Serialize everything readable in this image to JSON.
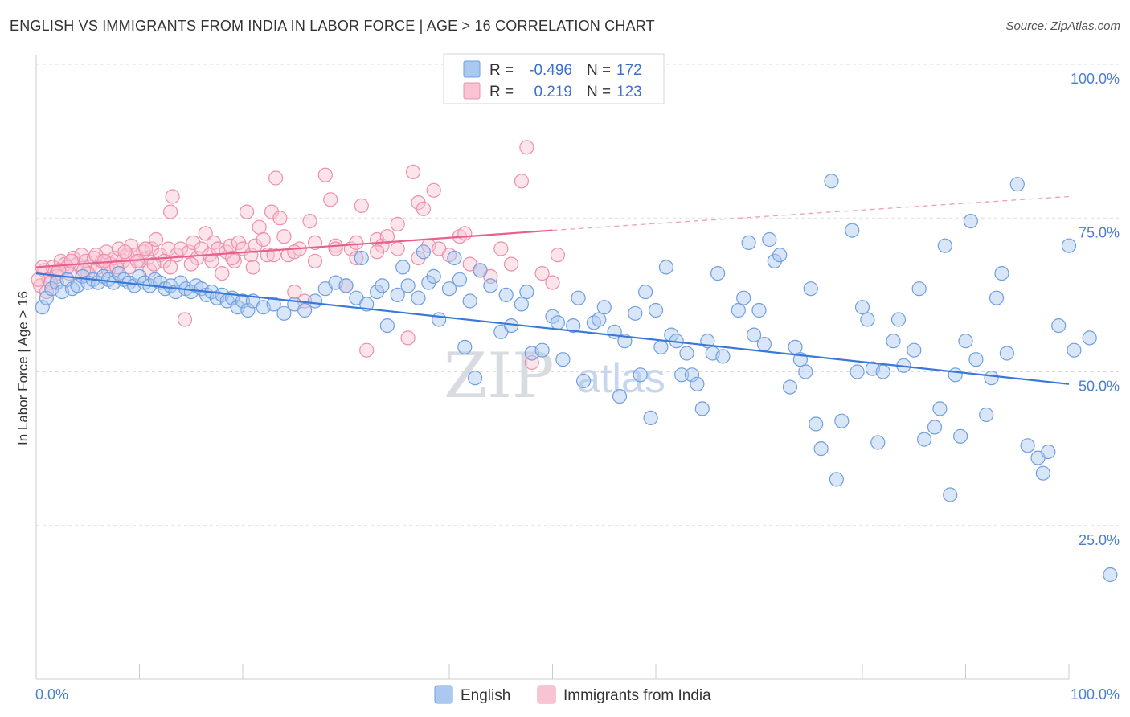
{
  "title": "ENGLISH VS IMMIGRANTS FROM INDIA IN LABOR FORCE | AGE > 16 CORRELATION CHART",
  "source": "Source: ZipAtlas.com",
  "watermark": {
    "zip": "ZIP",
    "atlas": "atlas"
  },
  "legend": {
    "r_label": "R =",
    "n_label": "N =",
    "rows": [
      {
        "r": "-0.496",
        "n": "172",
        "color": "#aac8f0",
        "stroke": "#6f9fe0"
      },
      {
        "r": "0.219",
        "n": "123",
        "color": "#f8c3d2",
        "stroke": "#ec8fab"
      }
    ]
  },
  "chart_data": {
    "type": "scatter",
    "title": "ENGLISH VS IMMIGRANTS FROM INDIA IN LABOR FORCE | AGE > 16 CORRELATION CHART",
    "xlabel": "",
    "ylabel": "In Labor Force | Age > 16",
    "xlim": [
      0,
      100
    ],
    "ylim": [
      0,
      100
    ],
    "y_ticks": [
      "100.0%",
      "75.0%",
      "50.0%",
      "25.0%"
    ],
    "y_tick_values": [
      100,
      75,
      50,
      25
    ],
    "x_tick_labels": [
      "0.0%",
      "100.0%"
    ],
    "grid": "horizontal dashed",
    "legend_placement": "bottom-center",
    "series": [
      {
        "name": "English",
        "color": "#6f9fe0",
        "fill": "#aac8f0",
        "trend": {
          "x0": 0,
          "y0": 66.0,
          "x1": 100,
          "y1": 48.0
        },
        "points": [
          [
            0.6,
            60.5
          ],
          [
            1,
            62
          ],
          [
            1.5,
            63.5
          ],
          [
            2,
            64.5
          ],
          [
            2.5,
            63
          ],
          [
            3,
            65
          ],
          [
            3.5,
            63.5
          ],
          [
            4,
            64
          ],
          [
            4.5,
            65.5
          ],
          [
            5,
            64.5
          ],
          [
            5.5,
            65
          ],
          [
            6,
            64.5
          ],
          [
            6.5,
            65.5
          ],
          [
            7,
            65
          ],
          [
            7.5,
            64.5
          ],
          [
            8,
            66
          ],
          [
            8.5,
            65
          ],
          [
            9,
            64.5
          ],
          [
            9.5,
            64
          ],
          [
            10,
            65.5
          ],
          [
            10.5,
            64.5
          ],
          [
            11,
            64
          ],
          [
            11.5,
            65
          ],
          [
            12,
            64.5
          ],
          [
            12.5,
            63.5
          ],
          [
            13,
            64
          ],
          [
            13.5,
            63
          ],
          [
            14,
            64.5
          ],
          [
            14.5,
            63.5
          ],
          [
            15,
            63
          ],
          [
            15.5,
            64
          ],
          [
            16,
            63.5
          ],
          [
            16.5,
            62.5
          ],
          [
            17,
            63
          ],
          [
            17.5,
            62
          ],
          [
            18,
            62.5
          ],
          [
            18.5,
            61.5
          ],
          [
            19,
            62
          ],
          [
            19.5,
            60.5
          ],
          [
            20,
            61.5
          ],
          [
            20.5,
            60
          ],
          [
            21,
            61.5
          ],
          [
            22,
            60.5
          ],
          [
            23,
            61
          ],
          [
            24,
            59.5
          ],
          [
            25,
            61
          ],
          [
            26,
            60
          ],
          [
            27,
            61.5
          ],
          [
            28,
            63.5
          ],
          [
            29,
            64.5
          ],
          [
            30,
            64
          ],
          [
            31,
            62
          ],
          [
            31.5,
            68.5
          ],
          [
            32,
            61
          ],
          [
            33,
            63
          ],
          [
            33.5,
            64
          ],
          [
            34,
            57.5
          ],
          [
            35,
            62.5
          ],
          [
            35.5,
            67
          ],
          [
            36,
            64
          ],
          [
            37,
            62
          ],
          [
            37.5,
            69.5
          ],
          [
            38,
            64.5
          ],
          [
            38.5,
            65.5
          ],
          [
            39,
            58.5
          ],
          [
            40,
            63.5
          ],
          [
            40.5,
            68.5
          ],
          [
            41,
            65
          ],
          [
            41.5,
            54
          ],
          [
            42,
            61.5
          ],
          [
            42.5,
            49
          ],
          [
            43,
            66.5
          ],
          [
            44,
            64
          ],
          [
            45,
            56.5
          ],
          [
            45.5,
            62.5
          ],
          [
            46,
            57.5
          ],
          [
            47,
            61
          ],
          [
            47.5,
            63
          ],
          [
            48,
            53
          ],
          [
            49,
            53.5
          ],
          [
            50,
            59
          ],
          [
            50.5,
            58
          ],
          [
            51,
            52
          ],
          [
            52,
            57.5
          ],
          [
            52.5,
            62
          ],
          [
            53,
            48.5
          ],
          [
            54,
            58
          ],
          [
            54.5,
            58.5
          ],
          [
            55,
            60.5
          ],
          [
            56,
            56.5
          ],
          [
            56.5,
            46
          ],
          [
            57,
            55
          ],
          [
            58,
            59.5
          ],
          [
            58.5,
            49.5
          ],
          [
            59,
            63
          ],
          [
            59.5,
            42.5
          ],
          [
            60,
            60
          ],
          [
            60.5,
            54
          ],
          [
            61,
            67
          ],
          [
            61.5,
            56
          ],
          [
            62,
            55
          ],
          [
            62.5,
            49.5
          ],
          [
            63,
            53
          ],
          [
            63.5,
            49.5
          ],
          [
            64,
            48
          ],
          [
            64.5,
            44
          ],
          [
            65,
            55
          ],
          [
            65.5,
            53
          ],
          [
            66,
            66
          ],
          [
            66.5,
            52.5
          ],
          [
            68,
            60
          ],
          [
            68.5,
            62
          ],
          [
            69,
            71
          ],
          [
            69.5,
            56
          ],
          [
            70,
            60
          ],
          [
            70.5,
            54.5
          ],
          [
            71,
            71.5
          ],
          [
            71.5,
            68
          ],
          [
            72,
            69
          ],
          [
            73,
            47.5
          ],
          [
            73.5,
            54
          ],
          [
            74,
            52
          ],
          [
            74.5,
            50
          ],
          [
            75,
            63.5
          ],
          [
            75.5,
            41.5
          ],
          [
            76,
            37.5
          ],
          [
            77,
            81
          ],
          [
            77.5,
            32.5
          ],
          [
            78,
            42
          ],
          [
            79,
            73
          ],
          [
            79.5,
            50
          ],
          [
            80,
            60.5
          ],
          [
            80.5,
            58.5
          ],
          [
            81,
            50.5
          ],
          [
            81.5,
            38.5
          ],
          [
            82,
            50
          ],
          [
            83,
            55
          ],
          [
            83.5,
            58.5
          ],
          [
            84,
            51
          ],
          [
            85,
            53.5
          ],
          [
            85.5,
            63.5
          ],
          [
            86,
            39
          ],
          [
            87,
            41
          ],
          [
            87.5,
            44
          ],
          [
            88,
            70.5
          ],
          [
            88.5,
            30
          ],
          [
            89,
            49.5
          ],
          [
            89.5,
            39.5
          ],
          [
            90,
            55
          ],
          [
            90.5,
            74.5
          ],
          [
            91,
            52
          ],
          [
            92,
            43
          ],
          [
            92.5,
            49
          ],
          [
            93,
            62
          ],
          [
            93.5,
            66
          ],
          [
            94,
            53
          ],
          [
            95,
            80.5
          ],
          [
            96,
            38
          ],
          [
            97,
            36
          ],
          [
            97.5,
            33.5
          ],
          [
            98,
            37
          ],
          [
            99,
            57.5
          ],
          [
            100,
            70.5
          ],
          [
            100.5,
            53.5
          ],
          [
            102,
            55.5
          ],
          [
            104,
            17
          ]
        ]
      },
      {
        "name": "Immigrants from India",
        "color": "#ec8fab",
        "fill": "#f8c3d2",
        "trend": {
          "x0": 0,
          "y0": 67.0,
          "x1": 50,
          "y1": 73.0
        },
        "trend_dashed": {
          "x0": 50,
          "y0": 73.0,
          "x1": 100,
          "y1": 78.5
        },
        "points": [
          [
            0.4,
            64
          ],
          [
            0.8,
            66.5
          ],
          [
            1.2,
            65
          ],
          [
            1.6,
            67
          ],
          [
            2,
            66
          ],
          [
            2.4,
            68
          ],
          [
            2.8,
            67.5
          ],
          [
            3.2,
            66
          ],
          [
            3.6,
            68.5
          ],
          [
            4,
            67.5
          ],
          [
            4.4,
            69
          ],
          [
            4.8,
            68
          ],
          [
            5.2,
            67
          ],
          [
            5.6,
            68.5
          ],
          [
            6,
            67
          ],
          [
            6.4,
            68
          ],
          [
            6.8,
            69.5
          ],
          [
            7.2,
            67.5
          ],
          [
            7.6,
            68.5
          ],
          [
            8,
            70
          ],
          [
            8.4,
            68
          ],
          [
            8.8,
            69
          ],
          [
            9.2,
            70.5
          ],
          [
            9.6,
            69
          ],
          [
            10,
            68
          ],
          [
            10.4,
            69.5
          ],
          [
            10.8,
            68.5
          ],
          [
            11.2,
            70
          ],
          [
            11.6,
            71.5
          ],
          [
            12,
            69
          ],
          [
            12.4,
            68
          ],
          [
            12.8,
            70
          ],
          [
            13,
            76
          ],
          [
            13.2,
            78.5
          ],
          [
            13.6,
            69
          ],
          [
            14,
            70
          ],
          [
            14.4,
            58.5
          ],
          [
            14.8,
            69.5
          ],
          [
            15.2,
            71
          ],
          [
            15.6,
            68.5
          ],
          [
            16,
            70
          ],
          [
            16.4,
            72.5
          ],
          [
            16.8,
            69
          ],
          [
            17.2,
            71
          ],
          [
            17.6,
            70
          ],
          [
            18,
            66
          ],
          [
            18.4,
            69.5
          ],
          [
            18.8,
            70.5
          ],
          [
            19.2,
            68
          ],
          [
            19.6,
            71
          ],
          [
            20,
            70
          ],
          [
            20.4,
            76
          ],
          [
            20.8,
            69
          ],
          [
            21.2,
            70.5
          ],
          [
            21.6,
            73.5
          ],
          [
            22,
            71.5
          ],
          [
            22.4,
            69
          ],
          [
            22.8,
            76
          ],
          [
            23.2,
            81.5
          ],
          [
            23.6,
            75
          ],
          [
            24,
            72
          ],
          [
            24.4,
            69
          ],
          [
            25,
            63
          ],
          [
            25.5,
            70
          ],
          [
            26,
            61.5
          ],
          [
            26.5,
            74.5
          ],
          [
            27,
            71
          ],
          [
            28,
            82
          ],
          [
            28.5,
            78
          ],
          [
            29,
            70.5
          ],
          [
            30,
            64
          ],
          [
            30.5,
            70
          ],
          [
            31,
            68.5
          ],
          [
            31.5,
            77
          ],
          [
            32,
            53.5
          ],
          [
            33,
            71.5
          ],
          [
            33.5,
            70.5
          ],
          [
            34,
            72
          ],
          [
            35,
            74
          ],
          [
            36,
            55.5
          ],
          [
            36.5,
            82.5
          ],
          [
            37,
            77.5
          ],
          [
            37.5,
            76.5
          ],
          [
            38,
            70.5
          ],
          [
            38.5,
            79.5
          ],
          [
            39,
            70
          ],
          [
            40,
            69
          ],
          [
            41,
            72
          ],
          [
            41.5,
            72.5
          ],
          [
            42,
            67.5
          ],
          [
            43,
            66.5
          ],
          [
            44,
            65.5
          ],
          [
            45,
            70
          ],
          [
            46,
            67.5
          ],
          [
            47,
            81
          ],
          [
            47.5,
            86.5
          ],
          [
            48,
            51.5
          ],
          [
            49,
            66
          ],
          [
            50,
            64.5
          ],
          [
            50.5,
            69
          ],
          [
            1,
            63
          ],
          [
            2,
            65.5
          ],
          [
            3,
            67
          ],
          [
            5,
            66
          ],
          [
            7,
            66.5
          ],
          [
            9,
            67
          ],
          [
            11,
            66.5
          ],
          [
            13,
            67
          ],
          [
            15,
            67.5
          ],
          [
            17,
            68
          ],
          [
            19,
            68.5
          ],
          [
            21,
            67
          ],
          [
            23,
            69
          ],
          [
            25,
            69.5
          ],
          [
            27,
            68
          ],
          [
            29,
            70
          ],
          [
            31,
            71
          ],
          [
            33,
            69.5
          ],
          [
            35,
            70
          ],
          [
            37,
            68.5
          ],
          [
            0.2,
            65
          ],
          [
            0.6,
            67
          ],
          [
            1.4,
            64.5
          ],
          [
            2.2,
            66.5
          ],
          [
            3.4,
            68
          ],
          [
            4.6,
            66.5
          ],
          [
            5.8,
            69
          ],
          [
            6.6,
            68
          ],
          [
            7.8,
            67
          ],
          [
            8.6,
            69.5
          ],
          [
            9.8,
            68
          ],
          [
            10.6,
            70
          ],
          [
            11.4,
            67.5
          ]
        ]
      }
    ]
  },
  "bottom_legend": [
    "English",
    "Immigrants from India"
  ]
}
